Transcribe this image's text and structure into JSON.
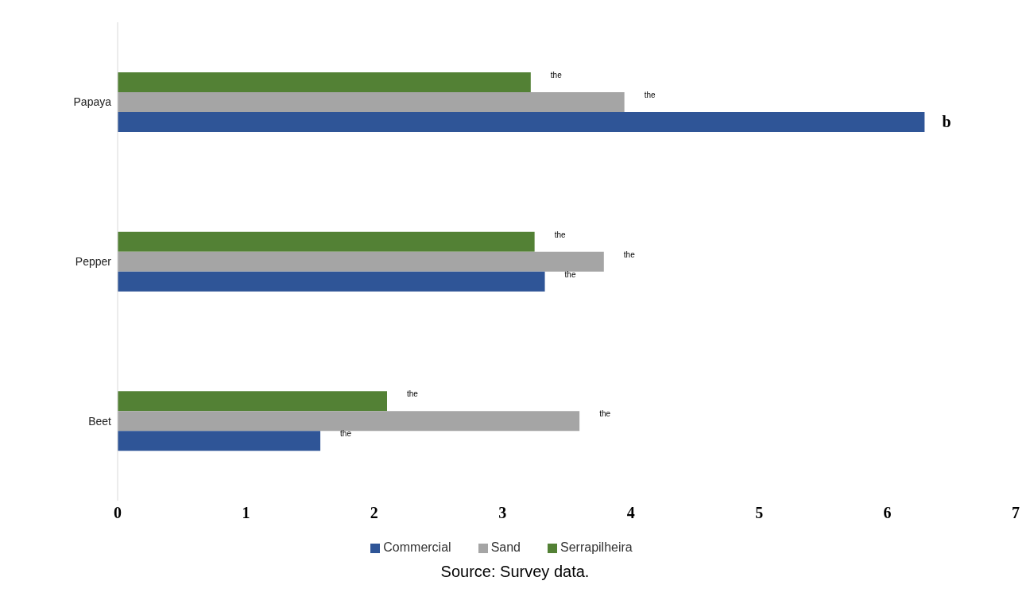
{
  "chart_data": {
    "type": "bar",
    "orientation": "horizontal",
    "categories": [
      "Papaya",
      "Pepper",
      "Beet"
    ],
    "series": [
      {
        "name": "Serrapilheira",
        "color": "#538135",
        "values": [
          3.22,
          3.25,
          2.1
        ],
        "value_labels": [
          "the",
          "the",
          "the"
        ]
      },
      {
        "name": "Sand",
        "color": "#a5a5a5",
        "values": [
          3.95,
          3.79,
          3.6
        ],
        "value_labels": [
          "the",
          "the",
          "the"
        ]
      },
      {
        "name": "Commercial",
        "color": "#2f5597",
        "values": [
          6.29,
          3.33,
          1.58
        ],
        "value_labels": [
          "b",
          "the",
          "the"
        ]
      }
    ],
    "xlim": [
      0,
      7
    ],
    "xticks": [
      0,
      1,
      2,
      3,
      4,
      5,
      6,
      7
    ],
    "grid": false,
    "legend": "bottom",
    "annotations": [
      "Source: Survey data."
    ]
  }
}
